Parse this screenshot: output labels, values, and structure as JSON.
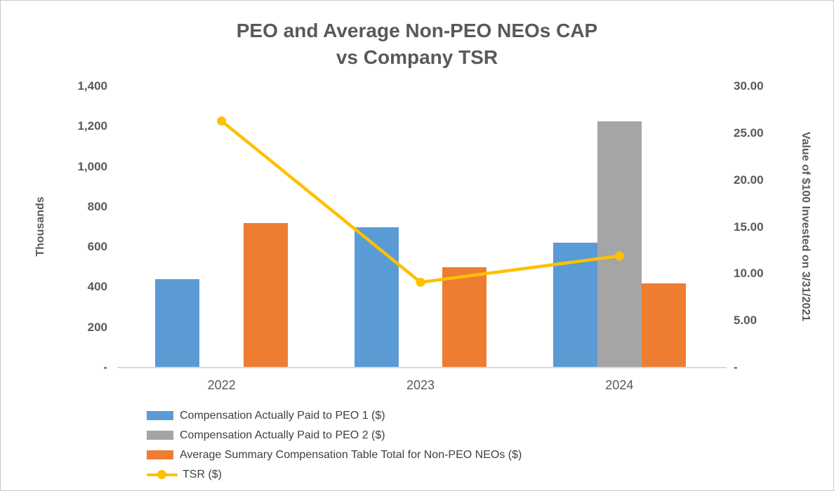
{
  "title": {
    "line1": "PEO and Average Non-PEO NEOs CAP",
    "line2": "vs Company TSR"
  },
  "left_axis": {
    "title": "Thousands",
    "ticks": [
      "1,400",
      "1,200",
      "1,000",
      "800",
      "600",
      "400",
      "200",
      "-"
    ]
  },
  "right_axis": {
    "title": "Value of $100 Invested on 3/31/2021",
    "ticks": [
      "30.00",
      "25.00",
      "20.00",
      "15.00",
      "10.00",
      "5.00",
      "-"
    ]
  },
  "colors": {
    "peo1_blue": "#5B9BD5",
    "peo2_gray": "#A5A5A5",
    "neo_orange": "#ED7D31",
    "tsr_yellow": "#FFC000",
    "text_dark_gray": "#595959",
    "legend_text": "#404040",
    "axis_line": "#D9D9D9"
  },
  "chart_data": {
    "type": "bar",
    "subtype": "combo-bar-line",
    "title": "PEO and Average Non-PEO NEOs CAP vs Company TSR",
    "categories": [
      "2022",
      "2023",
      "2024"
    ],
    "series": [
      {
        "id": "peo1",
        "name": "Compensation Actually Paid to PEO 1 ($)",
        "type": "bar",
        "axis": "left",
        "color": "#5B9BD5",
        "values": [
          440,
          700,
          620
        ]
      },
      {
        "id": "peo2",
        "name": "Compensation Actually Paid to PEO 2 ($)",
        "type": "bar",
        "axis": "left",
        "color": "#A5A5A5",
        "values": [
          null,
          null,
          1225
        ]
      },
      {
        "id": "neos",
        "name": "Average Summary Compensation Table Total for Non-PEO NEOs ($)",
        "type": "bar",
        "axis": "left",
        "color": "#ED7D31",
        "values": [
          720,
          500,
          420
        ]
      },
      {
        "id": "tsr",
        "name": "TSR ($)",
        "type": "line",
        "axis": "right",
        "color": "#FFC000",
        "values": [
          26.3,
          9.1,
          11.9
        ]
      }
    ],
    "left_ylabel": "Thousands",
    "right_ylabel": "Value of $100 Invested on 3/31/2021",
    "left_ylim": [
      0,
      1400
    ],
    "right_ylim": [
      0,
      30
    ],
    "grid": false,
    "legend_position": "bottom-left"
  }
}
